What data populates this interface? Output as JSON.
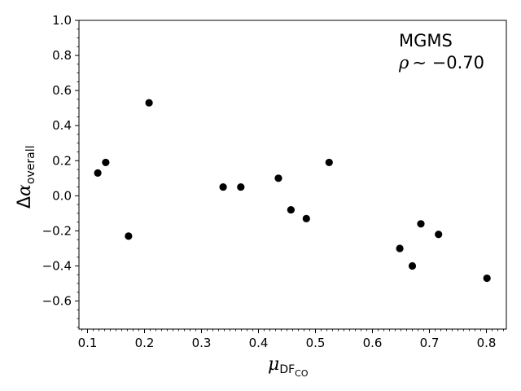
{
  "chart_data": {
    "type": "scatter",
    "annotation": {
      "line1": "MGMS",
      "rho_symbol": "ρ",
      "rho_value": "∼ −0.70"
    },
    "xlabel": {
      "base": "μ",
      "subscript": "DF",
      "subsub": "CO"
    },
    "ylabel": {
      "base": "Δα",
      "subscript": "overall"
    },
    "xlim": [
      0.085,
      0.835
    ],
    "ylim": [
      -0.76,
      1.0
    ],
    "xticks": [
      0.1,
      0.2,
      0.3,
      0.4,
      0.5,
      0.6,
      0.7,
      0.8
    ],
    "xtick_labels": [
      "0.1",
      "0.2",
      "0.3",
      "0.4",
      "0.5",
      "0.6",
      "0.7",
      "0.8"
    ],
    "yticks": [
      -0.6,
      -0.4,
      -0.2,
      0.0,
      0.2,
      0.4,
      0.6,
      0.8,
      1.0
    ],
    "ytick_labels": [
      "−0.6",
      "−0.4",
      "−0.2",
      "0.0",
      "0.2",
      "0.4",
      "0.6",
      "0.8",
      "1.0"
    ],
    "grid": false,
    "marker_color": "#000000",
    "points": [
      {
        "x": 0.118,
        "y": 0.13
      },
      {
        "x": 0.132,
        "y": 0.19
      },
      {
        "x": 0.172,
        "y": -0.23
      },
      {
        "x": 0.208,
        "y": 0.53
      },
      {
        "x": 0.338,
        "y": 0.05
      },
      {
        "x": 0.369,
        "y": 0.05
      },
      {
        "x": 0.435,
        "y": 0.1
      },
      {
        "x": 0.457,
        "y": -0.08
      },
      {
        "x": 0.484,
        "y": -0.13
      },
      {
        "x": 0.524,
        "y": 0.19
      },
      {
        "x": 0.648,
        "y": -0.3
      },
      {
        "x": 0.67,
        "y": -0.4
      },
      {
        "x": 0.685,
        "y": -0.16
      },
      {
        "x": 0.716,
        "y": -0.22
      },
      {
        "x": 0.801,
        "y": -0.47
      }
    ]
  }
}
